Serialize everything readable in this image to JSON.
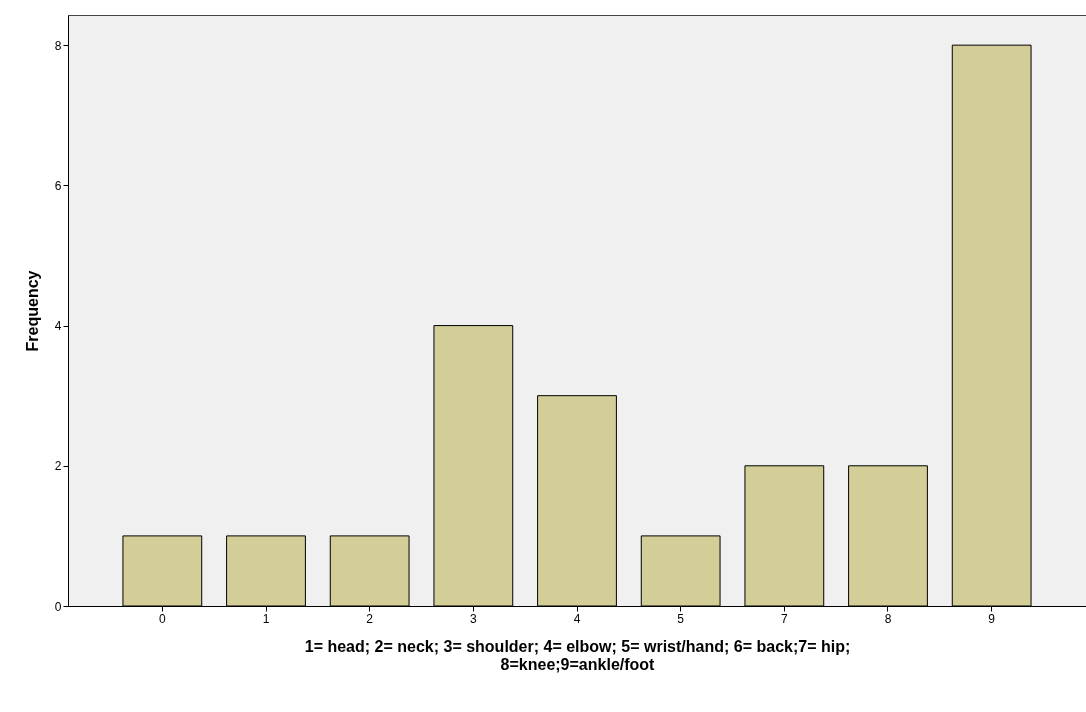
{
  "chart_data": {
    "type": "bar",
    "categories": [
      "0",
      "1",
      "2",
      "3",
      "4",
      "5",
      "7",
      "8",
      "9"
    ],
    "values": [
      1,
      1,
      1,
      4,
      3,
      1,
      2,
      2,
      8
    ],
    "color": "#d3ce97",
    "xlabel": "1= head; 2= neck; 3= shoulder; 4= elbow; 5= wrist/hand; 6= back;7= hip; 8=knee;9=ankle/foot",
    "ylabel": "Frequency",
    "ylim": [
      0,
      8.43
    ],
    "yticks": [
      0,
      2,
      4,
      6,
      8
    ],
    "grid": false
  }
}
